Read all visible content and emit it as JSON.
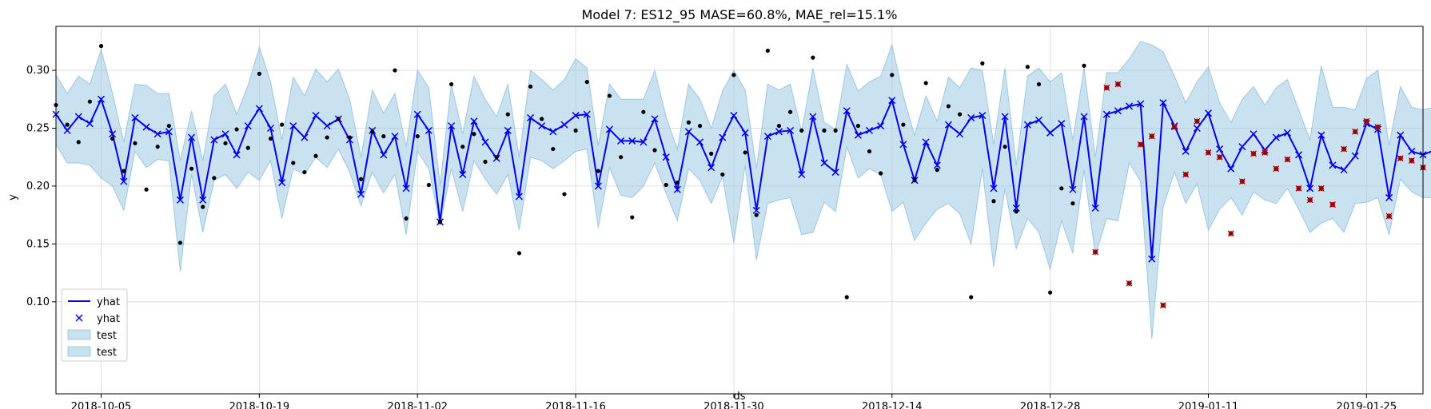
{
  "chart_data": {
    "type": "line",
    "title": "Model 7: ES12_95 MASE=60.8%, MAE_rel=15.1%",
    "xlabel": "ds",
    "ylabel": "y",
    "x_start": "2018-10-01",
    "x_tick_labels": [
      "2018-10-05",
      "2018-10-19",
      "2018-11-02",
      "2018-11-16",
      "2018-11-30",
      "2018-12-14",
      "2018-12-28",
      "2019-01-11",
      "2019-01-25"
    ],
    "x_tick_positions": [
      4,
      18,
      32,
      46,
      60,
      74,
      88,
      102,
      116
    ],
    "xlim": [
      0,
      121
    ],
    "y_ticks": [
      "0.10",
      "0.15",
      "0.20",
      "0.25",
      "0.30"
    ],
    "ylim": [
      0.055,
      0.338
    ],
    "grid": true,
    "legend_position": "lower-left",
    "legend": [
      "yhat",
      "yhat",
      "test",
      "test"
    ],
    "colors": {
      "yhat": "#0000ee",
      "band": "#9ecae1",
      "band_edge": "#6baed6",
      "actual": "#000000",
      "test_marker": "#cc0000"
    },
    "yhat": [
      0.262,
      0.248,
      0.26,
      0.254,
      0.275,
      0.245,
      0.204,
      0.259,
      0.251,
      0.245,
      0.247,
      0.188,
      0.242,
      0.188,
      0.24,
      0.245,
      0.227,
      0.252,
      0.267,
      0.25,
      0.203,
      0.252,
      0.242,
      0.261,
      0.252,
      0.258,
      0.24,
      0.193,
      0.248,
      0.227,
      0.243,
      0.198,
      0.262,
      0.248,
      0.169,
      0.252,
      0.21,
      0.256,
      0.238,
      0.224,
      0.248,
      0.191,
      0.259,
      0.252,
      0.247,
      0.253,
      0.261,
      0.262,
      0.2,
      0.249,
      0.239,
      0.239,
      0.238,
      0.258,
      0.225,
      0.197,
      0.247,
      0.238,
      0.216,
      0.242,
      0.261,
      0.246,
      0.179,
      0.243,
      0.247,
      0.248,
      0.21,
      0.26,
      0.22,
      0.212,
      0.265,
      0.244,
      0.248,
      0.252,
      0.274,
      0.236,
      0.205,
      0.238,
      0.218,
      0.253,
      0.245,
      0.259,
      0.261,
      0.198,
      0.26,
      0.181,
      0.253,
      0.257,
      0.246,
      0.254,
      0.197,
      0.26,
      0.181,
      0.262,
      0.265,
      0.269,
      0.271,
      0.137,
      0.272,
      0.252,
      0.23,
      0.25,
      0.263,
      0.232,
      0.215,
      0.234,
      0.245,
      0.231,
      0.242,
      0.246,
      0.227,
      0.198,
      0.244,
      0.218,
      0.214,
      0.226,
      0.254,
      0.249,
      0.19,
      0.244,
      0.23,
      0.227,
      0.231
    ],
    "upper": [
      0.296,
      0.28,
      0.295,
      0.288,
      0.318,
      0.28,
      0.238,
      0.288,
      0.287,
      0.28,
      0.28,
      0.222,
      0.265,
      0.222,
      0.278,
      0.288,
      0.262,
      0.287,
      0.32,
      0.29,
      0.24,
      0.294,
      0.278,
      0.301,
      0.29,
      0.301,
      0.275,
      0.225,
      0.283,
      0.263,
      0.28,
      0.234,
      0.3,
      0.285,
      0.201,
      0.288,
      0.245,
      0.295,
      0.275,
      0.26,
      0.288,
      0.225,
      0.3,
      0.292,
      0.283,
      0.292,
      0.31,
      0.302,
      0.235,
      0.288,
      0.275,
      0.275,
      0.275,
      0.3,
      0.26,
      0.232,
      0.288,
      0.275,
      0.25,
      0.282,
      0.3,
      0.283,
      0.215,
      0.288,
      0.283,
      0.288,
      0.247,
      0.302,
      0.255,
      0.249,
      0.305,
      0.282,
      0.29,
      0.295,
      0.322,
      0.278,
      0.244,
      0.278,
      0.256,
      0.294,
      0.285,
      0.302,
      0.3,
      0.236,
      0.302,
      0.218,
      0.295,
      0.302,
      0.29,
      0.298,
      0.24,
      0.302,
      0.225,
      0.298,
      0.298,
      0.31,
      0.325,
      0.322,
      0.316,
      0.295,
      0.272,
      0.29,
      0.303,
      0.272,
      0.255,
      0.275,
      0.286,
      0.27,
      0.285,
      0.292,
      0.266,
      0.24,
      0.304,
      0.268,
      0.268,
      0.266,
      0.293,
      0.3,
      0.235,
      0.286,
      0.268,
      0.266,
      0.268
    ],
    "lower": [
      0.236,
      0.22,
      0.22,
      0.218,
      0.207,
      0.2,
      0.179,
      0.23,
      0.216,
      0.223,
      0.222,
      0.126,
      0.21,
      0.16,
      0.205,
      0.21,
      0.198,
      0.212,
      0.205,
      0.222,
      0.172,
      0.215,
      0.21,
      0.225,
      0.216,
      0.232,
      0.212,
      0.183,
      0.212,
      0.194,
      0.21,
      0.158,
      0.23,
      0.215,
      0.166,
      0.215,
      0.178,
      0.222,
      0.206,
      0.193,
      0.21,
      0.162,
      0.225,
      0.222,
      0.215,
      0.222,
      0.23,
      0.232,
      0.164,
      0.216,
      0.192,
      0.19,
      0.2,
      0.22,
      0.194,
      0.17,
      0.215,
      0.205,
      0.185,
      0.208,
      0.151,
      0.218,
      0.136,
      0.185,
      0.188,
      0.19,
      0.158,
      0.16,
      0.186,
      0.178,
      0.234,
      0.207,
      0.215,
      0.21,
      0.178,
      0.186,
      0.153,
      0.168,
      0.18,
      0.185,
      0.176,
      0.15,
      0.215,
      0.13,
      0.198,
      0.146,
      0.172,
      0.16,
      0.128,
      0.17,
      0.142,
      0.214,
      0.14,
      0.172,
      0.17,
      0.22,
      0.204,
      0.068,
      0.182,
      0.212,
      0.185,
      0.202,
      0.162,
      0.18,
      0.19,
      0.175,
      0.195,
      0.188,
      0.185,
      0.198,
      0.18,
      0.16,
      0.168,
      0.172,
      0.16,
      0.185,
      0.186,
      0.19,
      0.158,
      0.206,
      0.195,
      0.19,
      0.19
    ],
    "actual_x": [
      0,
      1,
      2,
      3,
      4,
      5,
      6,
      7,
      8,
      9,
      10,
      11,
      12,
      13,
      14,
      15,
      16,
      17,
      18,
      19,
      20,
      21,
      22,
      23,
      24,
      25,
      26,
      27,
      28,
      29,
      30,
      31,
      32,
      33,
      34,
      35,
      36,
      37,
      38,
      39,
      40,
      41,
      42,
      43,
      44,
      45,
      46,
      47,
      48,
      49,
      50,
      51,
      52,
      53,
      54,
      55,
      56,
      57,
      58,
      59,
      60,
      61,
      62,
      63,
      64,
      65,
      66,
      67,
      68,
      69,
      70,
      71,
      72,
      73,
      74,
      75,
      76,
      77,
      78,
      79,
      80,
      81,
      82,
      83,
      84,
      85,
      86,
      87,
      88,
      89,
      90,
      91
    ],
    "actual_y": [
      0.27,
      0.253,
      0.238,
      0.273,
      0.321,
      0.241,
      0.213,
      0.237,
      0.197,
      0.234,
      0.252,
      0.151,
      0.215,
      0.182,
      0.207,
      0.237,
      0.249,
      0.233,
      0.297,
      0.241,
      0.253,
      0.22,
      0.212,
      0.226,
      0.242,
      0.258,
      0.242,
      0.206,
      0.247,
      0.243,
      0.3,
      0.172,
      0.243,
      0.201,
      0.169,
      0.288,
      0.234,
      0.245,
      0.221,
      0.225,
      0.262,
      0.142,
      0.286,
      0.258,
      0.232,
      0.193,
      0.248,
      0.29,
      0.213,
      0.278,
      0.225,
      0.173,
      0.264,
      0.231,
      0.201,
      0.203,
      0.255,
      0.252,
      0.228,
      0.21,
      0.296,
      0.229,
      0.175,
      0.317,
      0.252,
      0.264,
      0.248,
      0.311,
      0.248,
      0.248,
      0.104,
      0.252,
      0.23,
      0.211,
      0.296,
      0.253,
      0.205,
      0.289,
      0.214,
      0.269,
      0.262,
      0.104,
      0.306,
      0.187,
      0.234,
      0.178,
      0.303,
      0.288,
      0.108,
      0.198,
      0.185,
      0.304
    ],
    "test_x": [
      92,
      93,
      94,
      95,
      96,
      97,
      98,
      99,
      100,
      101,
      102,
      103,
      104,
      105,
      106,
      107,
      108,
      109,
      110,
      111,
      112,
      113,
      114,
      115,
      116,
      117,
      118,
      119,
      120,
      121
    ],
    "test_y": [
      0.143,
      0.285,
      0.288,
      0.116,
      0.236,
      0.243,
      0.097,
      0.251,
      0.21,
      0.256,
      0.229,
      0.225,
      0.159,
      0.204,
      0.228,
      0.229,
      0.215,
      0.223,
      0.198,
      0.188,
      0.198,
      0.184,
      0.232,
      0.247,
      0.256,
      0.251,
      0.174,
      0.224,
      0.222,
      0.216
    ]
  }
}
